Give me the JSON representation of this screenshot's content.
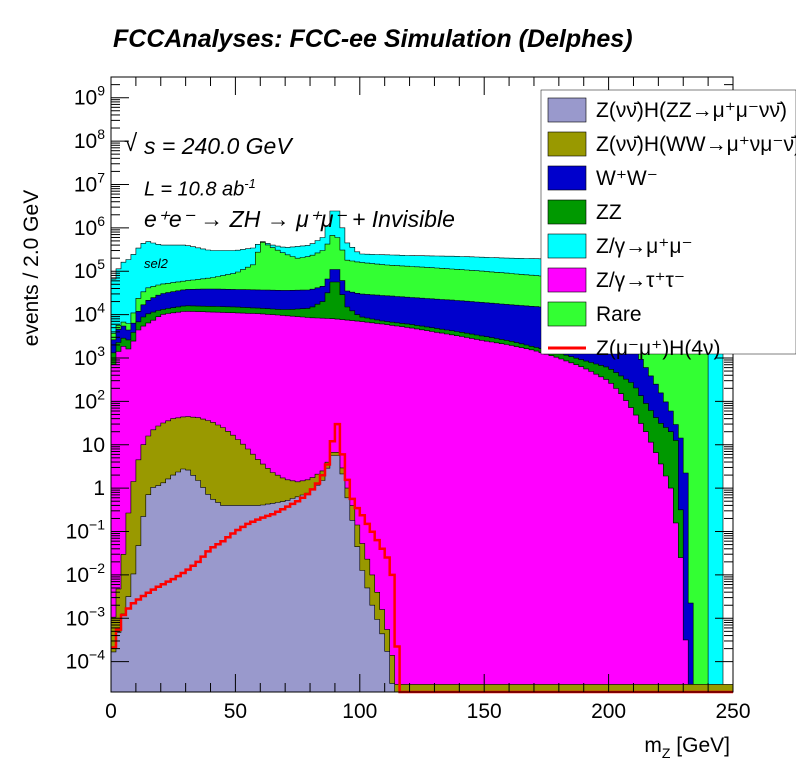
{
  "chart_data": {
    "type": "area",
    "title": "FCCAnalyses: FCC-ee Simulation (Delphes)",
    "xlabel": "m",
    "xlabel_sub": "Z",
    "xlabel_unit": " [GeV]",
    "ylabel": "events / 2.0 GeV",
    "xlim": [
      0,
      250
    ],
    "ylim": [
      2e-05,
      3000000000
    ],
    "y_scale": "log",
    "x_ticks": [
      "0",
      "50",
      "100",
      "150",
      "200",
      "250"
    ],
    "y_ticks": [
      {
        "value": 0.0001,
        "base": "10",
        "exp": "−4"
      },
      {
        "value": 0.001,
        "base": "10",
        "exp": "−3"
      },
      {
        "value": 0.01,
        "base": "10",
        "exp": "−2"
      },
      {
        "value": 0.1,
        "base": "10",
        "exp": "−1"
      },
      {
        "value": 1,
        "base": "1",
        "exp": ""
      },
      {
        "value": 10,
        "base": "10",
        "exp": ""
      },
      {
        "value": 100,
        "base": "10",
        "exp": "2"
      },
      {
        "value": 1000,
        "base": "10",
        "exp": "3"
      },
      {
        "value": 10000,
        "base": "10",
        "exp": "4"
      },
      {
        "value": 100000,
        "base": "10",
        "exp": "5"
      },
      {
        "value": 1000000,
        "base": "10",
        "exp": "6"
      },
      {
        "value": 10000000,
        "base": "10",
        "exp": "7"
      },
      {
        "value": 100000000,
        "base": "10",
        "exp": "8"
      },
      {
        "value": 1000000000,
        "base": "10",
        "exp": "9"
      }
    ],
    "annotations": {
      "energy": "s = 240.0 GeV",
      "lumi_prefix": "L = 10.8 ab",
      "lumi_exp": "-1",
      "process": "e⁺e⁻ → ZH → μ⁺μ⁻ + Invisible",
      "selection": "sel2"
    },
    "legend_position": "top-right",
    "stacked_series": [
      {
        "name": "Z(νν̄)H(ZZ→μ⁺μ⁻νν̄)",
        "color": "#9999cc",
        "points": [
          [
            0,
            0.0001
          ],
          [
            4,
            0.0008
          ],
          [
            8,
            0.005
          ],
          [
            12,
            0.1
          ],
          [
            14,
            0.5
          ],
          [
            16,
            1
          ],
          [
            20,
            1.2
          ],
          [
            25,
            2
          ],
          [
            30,
            3
          ],
          [
            35,
            1.5
          ],
          [
            40,
            0.6
          ],
          [
            45,
            0.4
          ],
          [
            50,
            0.4
          ],
          [
            60,
            0.4
          ],
          [
            70,
            0.5
          ],
          [
            80,
            0.8
          ],
          [
            85,
            1.5
          ],
          [
            88,
            4
          ],
          [
            90,
            8
          ],
          [
            92,
            4
          ],
          [
            95,
            0.6
          ],
          [
            98,
            0.1
          ],
          [
            100,
            0.02
          ],
          [
            105,
            0.002
          ],
          [
            110,
            0.0003
          ],
          [
            112,
            0.0001
          ],
          [
            114,
            1e-05
          ]
        ]
      },
      {
        "name": "Z(νν̄)H(WW→μ⁺νμ⁻ν̄)",
        "color": "#999900",
        "points": [
          [
            0,
            0.0005
          ],
          [
            4,
            0.01
          ],
          [
            8,
            0.8
          ],
          [
            12,
            8
          ],
          [
            16,
            20
          ],
          [
            20,
            30
          ],
          [
            25,
            40
          ],
          [
            30,
            45
          ],
          [
            35,
            42
          ],
          [
            40,
            35
          ],
          [
            45,
            25
          ],
          [
            50,
            15
          ],
          [
            55,
            8
          ],
          [
            60,
            4
          ],
          [
            65,
            2.3
          ],
          [
            70,
            1.6
          ],
          [
            75,
            1.4
          ],
          [
            80,
            1.6
          ],
          [
            85,
            2.5
          ],
          [
            88,
            5
          ],
          [
            90,
            9
          ],
          [
            92,
            5
          ],
          [
            95,
            1
          ],
          [
            98,
            0.25
          ],
          [
            100,
            0.08
          ],
          [
            105,
            0.01
          ],
          [
            110,
            0.001
          ],
          [
            112,
            0.0003
          ],
          [
            115,
            3e-05
          ]
        ]
      },
      {
        "name": "Z/γ→τ⁺τ⁻",
        "color": "#ff00ff",
        "points": [
          [
            0,
            500
          ],
          [
            4,
            2000
          ],
          [
            8,
            1500
          ],
          [
            10,
            4000
          ],
          [
            14,
            6000
          ],
          [
            18,
            8000
          ],
          [
            20,
            10000
          ],
          [
            25,
            11000
          ],
          [
            30,
            12000
          ],
          [
            40,
            11500
          ],
          [
            50,
            11000
          ],
          [
            60,
            10500
          ],
          [
            70,
            9500
          ],
          [
            80,
            8500
          ],
          [
            90,
            8000
          ],
          [
            100,
            7000
          ],
          [
            110,
            6000
          ],
          [
            120,
            5000
          ],
          [
            130,
            4000
          ],
          [
            140,
            3200
          ],
          [
            150,
            2500
          ],
          [
            160,
            2000
          ],
          [
            170,
            1500
          ],
          [
            180,
            1000
          ],
          [
            190,
            600
          ],
          [
            200,
            300
          ],
          [
            205,
            150
          ],
          [
            210,
            60
          ],
          [
            215,
            20
          ],
          [
            220,
            5
          ],
          [
            225,
            1
          ],
          [
            230,
            0.01
          ],
          [
            232,
            1e-05
          ]
        ]
      },
      {
        "name": "ZZ",
        "color": "#009900",
        "points": [
          [
            0,
            1000
          ],
          [
            4,
            3000
          ],
          [
            8,
            2500
          ],
          [
            10,
            6000
          ],
          [
            14,
            10000
          ],
          [
            20,
            13000
          ],
          [
            30,
            16000
          ],
          [
            50,
            15000
          ],
          [
            60,
            14000
          ],
          [
            70,
            13000
          ],
          [
            80,
            14000
          ],
          [
            85,
            20000
          ],
          [
            88,
            40000
          ],
          [
            90,
            80000
          ],
          [
            92,
            40000
          ],
          [
            95,
            15000
          ],
          [
            100,
            9000
          ],
          [
            110,
            7000
          ],
          [
            120,
            6000
          ],
          [
            140,
            4000
          ],
          [
            160,
            2500
          ],
          [
            180,
            1300
          ],
          [
            200,
            600
          ],
          [
            210,
            250
          ],
          [
            215,
            90
          ],
          [
            220,
            35
          ],
          [
            225,
            20
          ],
          [
            228,
            10
          ],
          [
            230,
            0.01
          ],
          [
            232,
            1e-05
          ]
        ]
      },
      {
        "name": "W⁺W⁻",
        "color": "#0000cc",
        "points": [
          [
            0,
            2000
          ],
          [
            4,
            6000
          ],
          [
            8,
            4000
          ],
          [
            10,
            10000
          ],
          [
            14,
            20000
          ],
          [
            20,
            30000
          ],
          [
            30,
            38000
          ],
          [
            40,
            39000
          ],
          [
            50,
            38000
          ],
          [
            60,
            37000
          ],
          [
            70,
            36000
          ],
          [
            80,
            37000
          ],
          [
            85,
            45000
          ],
          [
            88,
            80000
          ],
          [
            90,
            150000
          ],
          [
            92,
            80000
          ],
          [
            95,
            35000
          ],
          [
            100,
            30000
          ],
          [
            120,
            25000
          ],
          [
            140,
            21000
          ],
          [
            160,
            17000
          ],
          [
            180,
            14000
          ],
          [
            190,
            10000
          ],
          [
            200,
            8000
          ],
          [
            205,
            5000
          ],
          [
            210,
            1800
          ],
          [
            215,
            600
          ],
          [
            220,
            200
          ],
          [
            225,
            60
          ],
          [
            230,
            10
          ],
          [
            232,
            0.5
          ],
          [
            234,
            1e-05
          ]
        ]
      },
      {
        "name": "Rare",
        "color": "#33ff33",
        "points": [
          [
            0,
            3000
          ],
          [
            4,
            7000
          ],
          [
            8,
            6000
          ],
          [
            10,
            20000
          ],
          [
            14,
            40000
          ],
          [
            20,
            50000
          ],
          [
            30,
            60000
          ],
          [
            40,
            70000
          ],
          [
            50,
            90000
          ],
          [
            58,
            150000
          ],
          [
            60,
            500000
          ],
          [
            65,
            350000
          ],
          [
            70,
            250000
          ],
          [
            75,
            200000
          ],
          [
            80,
            220000
          ],
          [
            85,
            300000
          ],
          [
            88,
            500000
          ],
          [
            90,
            900000
          ],
          [
            92,
            400000
          ],
          [
            95,
            180000
          ],
          [
            100,
            160000
          ],
          [
            110,
            140000
          ],
          [
            130,
            120000
          ],
          [
            150,
            100000
          ],
          [
            170,
            80000
          ],
          [
            190,
            65000
          ],
          [
            200,
            55000
          ],
          [
            210,
            45000
          ],
          [
            220,
            40000
          ],
          [
            225,
            45000
          ],
          [
            230,
            60000
          ],
          [
            234,
            80000
          ],
          [
            236,
            80000
          ],
          [
            238,
            100000
          ],
          [
            240,
            80000
          ],
          [
            241,
            1e-05
          ]
        ]
      },
      {
        "name": "Z/γ→μ⁺μ⁻",
        "color": "#00ffff",
        "points": [
          [
            0,
            50000
          ],
          [
            4,
            150000
          ],
          [
            8,
            200000
          ],
          [
            10,
            300000
          ],
          [
            14,
            500000
          ],
          [
            20,
            400000
          ],
          [
            30,
            400000
          ],
          [
            40,
            300000
          ],
          [
            50,
            300000
          ],
          [
            58,
            350000
          ],
          [
            60,
            500000
          ],
          [
            65,
            400000
          ],
          [
            70,
            350000
          ],
          [
            80,
            400000
          ],
          [
            85,
            600000
          ],
          [
            88,
            1500000
          ],
          [
            90,
            4000000
          ],
          [
            92,
            1500000
          ],
          [
            95,
            450000
          ],
          [
            100,
            250000
          ],
          [
            120,
            230000
          ],
          [
            140,
            220000
          ],
          [
            160,
            200000
          ],
          [
            180,
            190000
          ],
          [
            200,
            190000
          ],
          [
            210,
            200000
          ],
          [
            220,
            250000
          ],
          [
            225,
            300000
          ],
          [
            230,
            500000
          ],
          [
            233,
            1000000
          ],
          [
            235,
            2000000
          ],
          [
            237,
            4000000
          ],
          [
            238,
            7000000
          ],
          [
            239,
            3000000
          ],
          [
            240,
            2000000
          ],
          [
            243,
            1000000
          ],
          [
            245,
            400000
          ],
          [
            246,
            1e-05
          ]
        ]
      }
    ],
    "line_series": {
      "name": "Z(μ⁻μ⁺)H(4ν)",
      "color": "#ff0000",
      "points": [
        [
          0,
          0.00015
        ],
        [
          2,
          0.0003
        ],
        [
          4,
          0.001
        ],
        [
          8,
          0.002
        ],
        [
          12,
          0.003
        ],
        [
          18,
          0.005
        ],
        [
          25,
          0.008
        ],
        [
          30,
          0.012
        ],
        [
          35,
          0.02
        ],
        [
          40,
          0.04
        ],
        [
          45,
          0.06
        ],
        [
          50,
          0.1
        ],
        [
          55,
          0.15
        ],
        [
          60,
          0.2
        ],
        [
          65,
          0.25
        ],
        [
          70,
          0.35
        ],
        [
          75,
          0.5
        ],
        [
          80,
          0.8
        ],
        [
          84,
          1.5
        ],
        [
          87,
          3.5
        ],
        [
          89,
          12
        ],
        [
          90,
          30
        ],
        [
          91,
          30
        ],
        [
          92,
          12
        ],
        [
          94,
          3
        ],
        [
          96,
          0.8
        ],
        [
          98,
          0.4
        ],
        [
          100,
          0.3
        ],
        [
          103,
          0.15
        ],
        [
          106,
          0.08
        ],
        [
          109,
          0.04
        ],
        [
          112,
          0.02
        ],
        [
          114,
          0.005
        ],
        [
          116,
          1e-05
        ]
      ]
    }
  }
}
